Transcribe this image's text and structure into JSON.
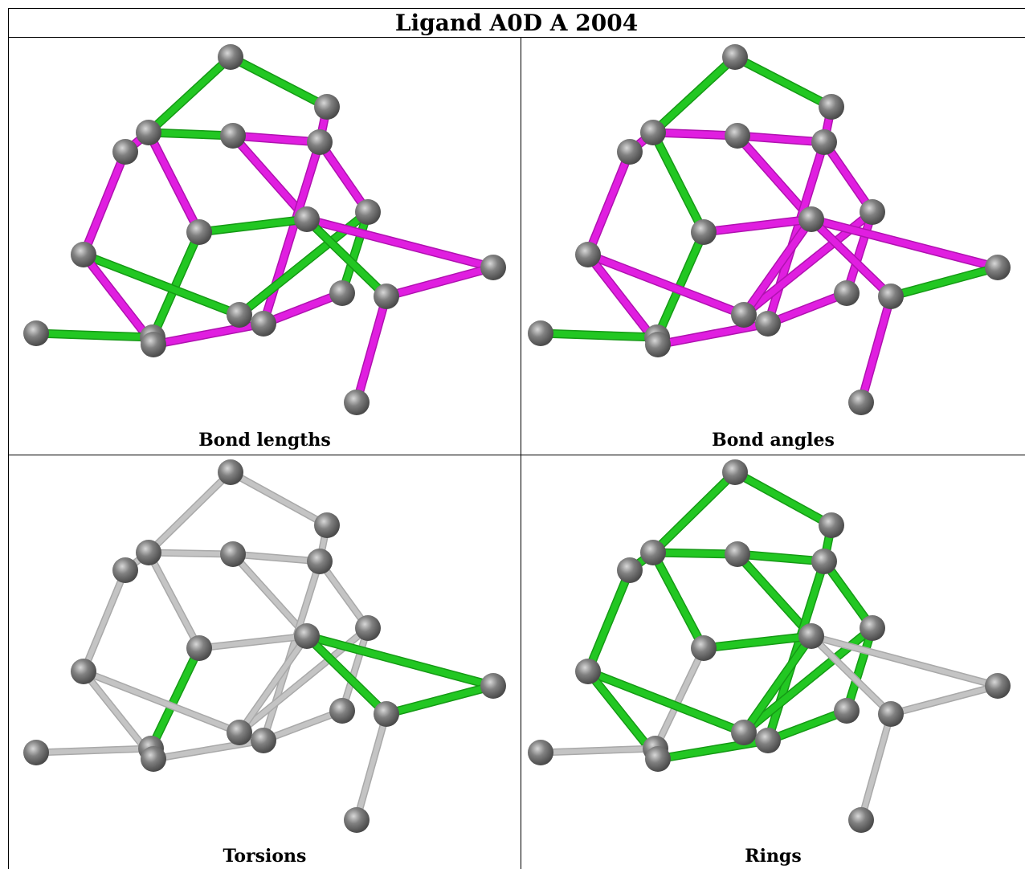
{
  "title": "Ligand A0D A 2004",
  "colors": {
    "atom": "#808080",
    "green": "#22c722",
    "magenta": "#e01ee0",
    "gray": "#c4c4c4",
    "border": "#000000"
  },
  "panels": [
    {
      "id": "bond-lengths",
      "caption": "Bond lengths"
    },
    {
      "id": "bond-angles",
      "caption": "Bond angles"
    },
    {
      "id": "torsions",
      "caption": "Torsions"
    },
    {
      "id": "rings",
      "caption": "Rings"
    }
  ]
}
